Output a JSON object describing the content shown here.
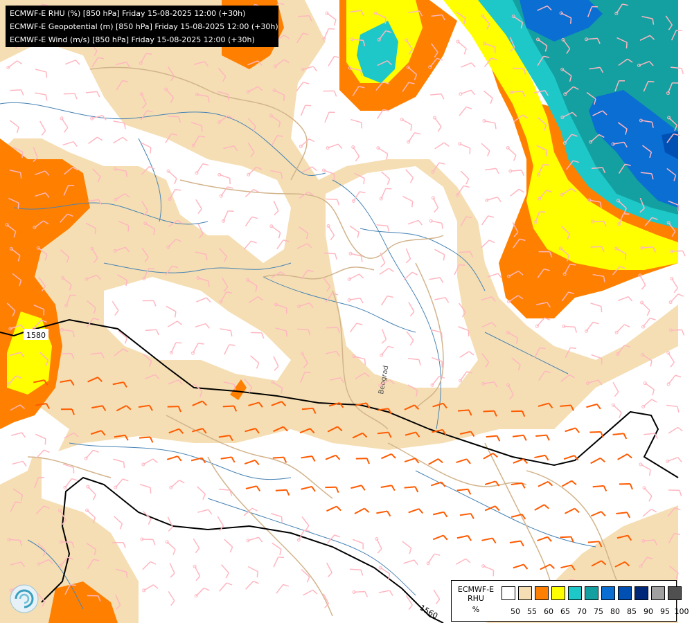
{
  "header": {
    "lines": [
      "ECMWF-E RHU (%) [850 hPa] Friday 15-08-2025 12:00 (+30h)",
      "ECMWF-E Geopotential (m) [850 hPa] Friday 15-08-2025 12:00 (+30h)",
      "ECMWF-E Wind (m/s) [850 hPa] Friday 15-08-2025 12:00 (+30h)"
    ]
  },
  "map": {
    "contour_labels": [
      "1580",
      "1560"
    ],
    "place_label": "Beograd"
  },
  "legend": {
    "title_lines": [
      "ECMWF-E",
      "RHU",
      "%"
    ],
    "ticks": [
      "50",
      "55",
      "60",
      "65",
      "70",
      "75",
      "80",
      "85",
      "90",
      "95",
      "100"
    ],
    "colors": [
      "#ffffff",
      "#f5deb3",
      "#ff8000",
      "#ffff00",
      "#1ec8c8",
      "#14a0a0",
      "#0a6ed2",
      "#0050b4",
      "#002878",
      "#a0a0a0",
      "#505050"
    ]
  },
  "palette": {
    "c55": "#f5deb3",
    "c60": "#ff8000",
    "c65": "#ffff00",
    "c70": "#1ec8c8",
    "c75": "#14a0a0",
    "c80": "#0a6ed2",
    "c85": "#0050b4",
    "wind_light": "#ffb6c1",
    "wind_strong": "#ff5a00",
    "river": "#4682b4",
    "border": "#d2b48c",
    "contour": "#000000"
  }
}
